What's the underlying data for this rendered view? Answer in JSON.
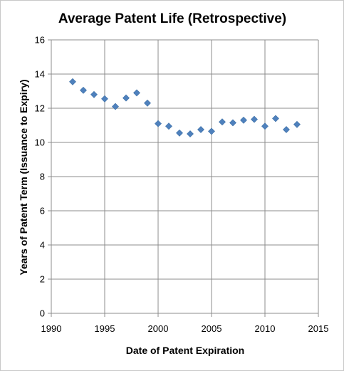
{
  "chart_data": {
    "type": "scatter",
    "title": "Average Patent Life (Retrospective)",
    "xlabel": "Date of Patent Expiration",
    "ylabel": "Years of Patent Term (Issuance to Expiry)",
    "xlim": [
      1990,
      2015
    ],
    "ylim": [
      0,
      16
    ],
    "xticks": [
      1990,
      1995,
      2000,
      2005,
      2010,
      2015
    ],
    "yticks": [
      0,
      2,
      4,
      6,
      8,
      10,
      12,
      14,
      16
    ],
    "grid": true,
    "legend": "none",
    "marker_color": "#4f81bd",
    "marker": "diamond",
    "series": [
      {
        "x": [
          1992,
          1993,
          1994,
          1995,
          1996,
          1997,
          1998,
          1999,
          2000,
          2001,
          2002,
          2003,
          2004,
          2005,
          2006,
          2007,
          2008,
          2009,
          2010,
          2011,
          2012,
          2013
        ],
        "y": [
          13.55,
          13.05,
          12.8,
          12.55,
          12.1,
          12.6,
          12.9,
          12.3,
          11.1,
          10.95,
          10.55,
          10.5,
          10.75,
          10.65,
          11.2,
          11.15,
          11.3,
          11.35,
          10.95,
          11.4,
          10.75,
          11.05
        ]
      }
    ]
  }
}
